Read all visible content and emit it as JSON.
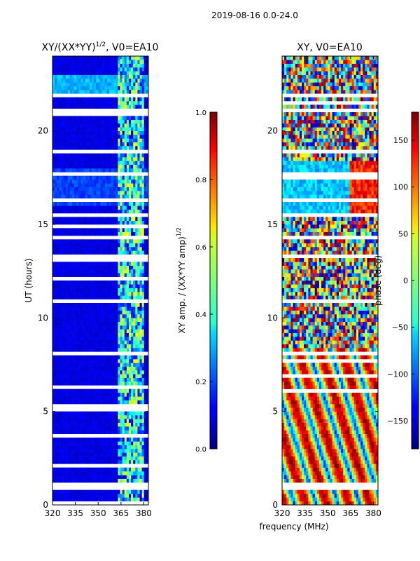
{
  "figure": {
    "suptitle": "2019-08-16 0.0-24.0",
    "xlabel": "frequency (MHz)"
  },
  "chart_data": [
    {
      "type": "heatmap",
      "title": "XY/(XX*YY)",
      "title_exponent": "1/2",
      "title_suffix": ", V0=EA10",
      "xlabel": "",
      "ylabel": "UT (hours)",
      "xlim": [
        320,
        383
      ],
      "ylim": [
        0,
        24
      ],
      "xticks": [
        320,
        335,
        350,
        365,
        380
      ],
      "yticks": [
        0,
        5,
        10,
        15,
        20
      ],
      "colormap": "jet",
      "colorbar": {
        "label": "XY amp. / (XX*YY amp)",
        "label_exponent": "1/2",
        "range": [
          0.0,
          1.0
        ],
        "ticks": [
          "0.0",
          "0.2",
          "0.4",
          "0.6",
          "0.8",
          "1.0"
        ]
      },
      "active_band_mhz": [
        363,
        380
      ],
      "blank_ut_hours": [
        0.9,
        1.1,
        2.4,
        2.6,
        4.2,
        6.0,
        8.1,
        10.9,
        11.2,
        11.6,
        14.3,
        15.5,
        16.3,
        18.2,
        18.9,
        21.1,
        21.9,
        22.8,
        23.6
      ]
    },
    {
      "type": "heatmap",
      "title": "XY, V0=EA10",
      "xlabel": "",
      "ylabel": "",
      "xlim": [
        320,
        383
      ],
      "ylim": [
        0,
        24
      ],
      "xticks": [
        320,
        335,
        350,
        365,
        380
      ],
      "yticks": [
        0,
        5,
        10,
        15,
        20
      ],
      "colormap": "jet",
      "colorbar": {
        "label": "phase (deg)",
        "range": [
          -180,
          180
        ],
        "ticks": [
          "150",
          "100",
          "50",
          "0",
          "−50",
          "−100",
          "−150"
        ],
        "tick_values": [
          150,
          100,
          50,
          0,
          -50,
          -100,
          -150
        ]
      },
      "blank_ut_hours": [
        0.9,
        1.1,
        2.4,
        2.6,
        4.2,
        6.0,
        8.1,
        10.9,
        11.2,
        11.6,
        14.3,
        15.5,
        16.3,
        18.2,
        18.9,
        21.1,
        21.9,
        22.8,
        23.6
      ]
    }
  ]
}
